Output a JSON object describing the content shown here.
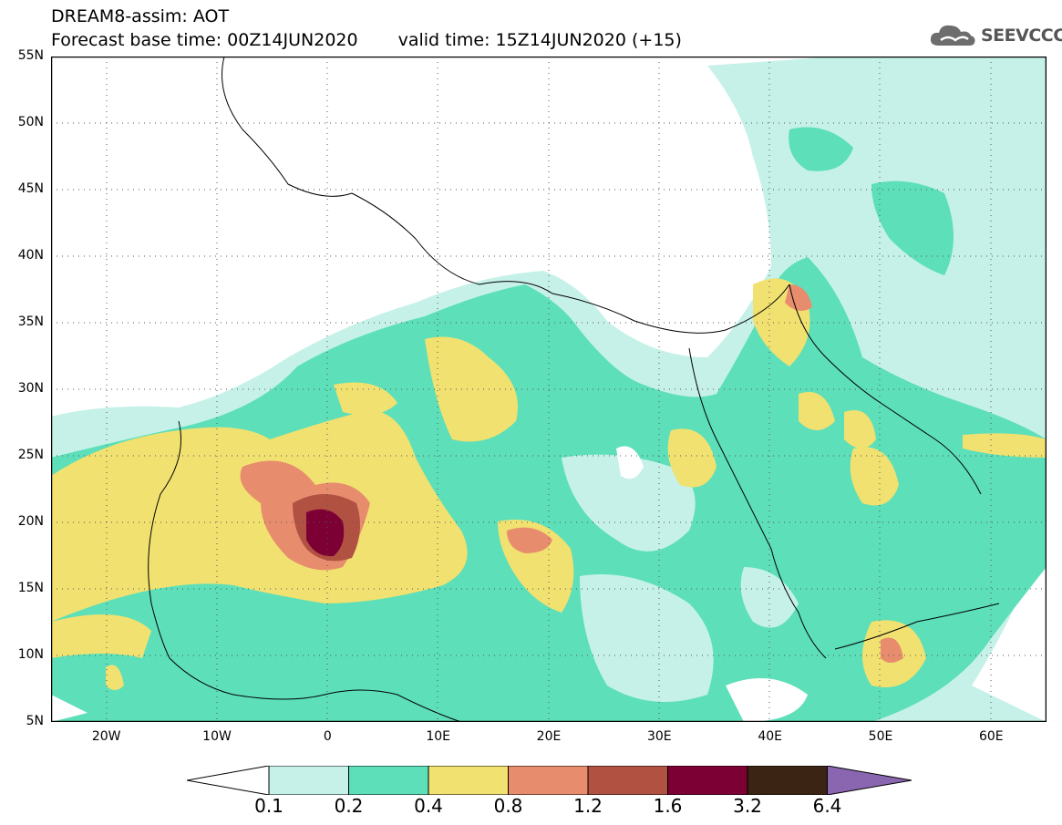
{
  "header": {
    "title": "DREAM8-assim: AOT",
    "base_time": "Forecast base time: 00Z14JUN2020",
    "valid_time": "valid time: 15Z14JUN2020 (+15)"
  },
  "logo": {
    "icon": "cloud-icon",
    "text": "SEEVCCC"
  },
  "map": {
    "lat_labels": [
      "55N",
      "50N",
      "45N",
      "40N",
      "35N",
      "30N",
      "25N",
      "20N",
      "15N",
      "10N",
      "5N"
    ],
    "lon_labels": [
      "20W",
      "10W",
      "0",
      "10E",
      "20E",
      "30E",
      "40E",
      "50E",
      "60E"
    ],
    "lon_range": [
      -25,
      65
    ],
    "lat_range": [
      5,
      55
    ],
    "grid": "dotted"
  },
  "legend": {
    "ticks": [
      "0.1",
      "0.2",
      "0.4",
      "0.8",
      "1.2",
      "1.6",
      "3.2",
      "6.4"
    ],
    "colors": [
      "#ffffff",
      "#c6f1e9",
      "#5ddfb9",
      "#f1e170",
      "#e78d6e",
      "#b15142",
      "#7d0034",
      "#3b2413",
      "#8b66b0"
    ]
  }
}
